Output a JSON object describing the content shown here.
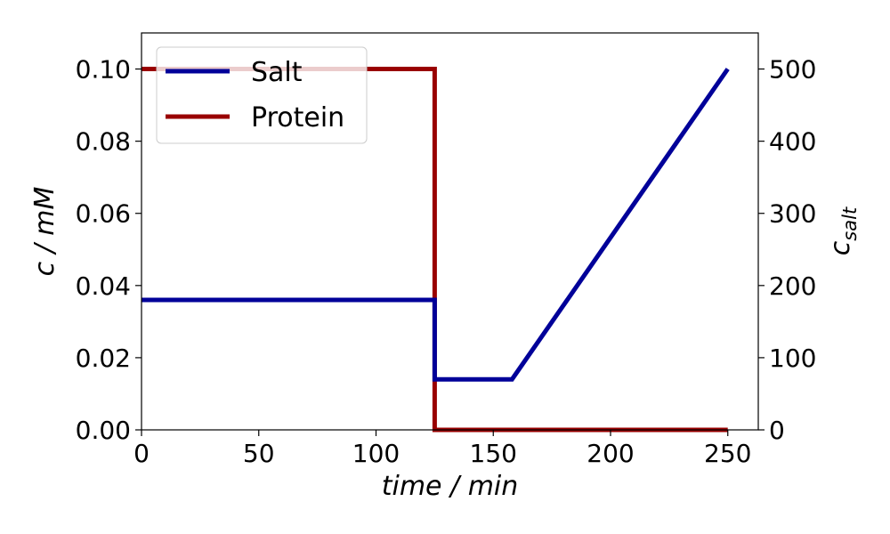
{
  "chart_data": {
    "type": "line",
    "xlabel": "time / min",
    "ylabel_left": "c / mM",
    "ylabel_right_base": "c",
    "ylabel_right_sub": "salt",
    "xlim": [
      0,
      263
    ],
    "ylim_left": [
      0,
      0.11
    ],
    "ylim_right": [
      0,
      550
    ],
    "x_ticks": [
      0,
      50,
      100,
      150,
      200,
      250
    ],
    "y_left_ticks": [
      0.0,
      0.02,
      0.04,
      0.06,
      0.08,
      0.1
    ],
    "y_left_tick_labels": [
      "0.00",
      "0.02",
      "0.04",
      "0.06",
      "0.08",
      "0.10"
    ],
    "y_right_ticks": [
      0,
      100,
      200,
      300,
      400,
      500
    ],
    "legend_position": "top-left",
    "series": [
      {
        "name": "Salt",
        "axis": "right",
        "color": "#000099",
        "points": [
          [
            0,
            180
          ],
          [
            125,
            180
          ],
          [
            125,
            70
          ],
          [
            158,
            70
          ],
          [
            250,
            500
          ]
        ]
      },
      {
        "name": "Protein",
        "axis": "left",
        "color": "#990000",
        "points": [
          [
            0,
            0.1
          ],
          [
            125,
            0.1
          ],
          [
            125,
            0.0
          ],
          [
            250,
            0.0
          ]
        ]
      }
    ]
  }
}
